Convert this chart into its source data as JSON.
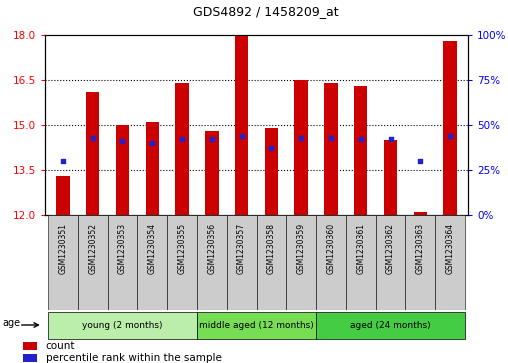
{
  "title": "GDS4892 / 1458209_at",
  "samples": [
    "GSM1230351",
    "GSM1230352",
    "GSM1230353",
    "GSM1230354",
    "GSM1230355",
    "GSM1230356",
    "GSM1230357",
    "GSM1230358",
    "GSM1230359",
    "GSM1230360",
    "GSM1230361",
    "GSM1230362",
    "GSM1230363",
    "GSM1230364"
  ],
  "bar_tops": [
    13.3,
    16.1,
    15.0,
    15.1,
    16.4,
    14.8,
    18.0,
    14.9,
    16.5,
    16.4,
    16.3,
    14.5,
    12.1,
    17.8
  ],
  "bar_bottom": 12.0,
  "percentile_values": [
    30,
    43,
    41,
    40,
    42,
    42,
    44,
    37,
    43,
    43,
    42,
    42,
    30,
    44
  ],
  "left_ylim": [
    12,
    18
  ],
  "right_ylim": [
    0,
    100
  ],
  "left_yticks": [
    12,
    13.5,
    15,
    16.5,
    18
  ],
  "right_yticks": [
    0,
    25,
    50,
    75,
    100
  ],
  "right_yticklabels": [
    "0%",
    "25%",
    "50%",
    "75%",
    "100%"
  ],
  "dotted_lines": [
    13.5,
    15.0,
    16.5
  ],
  "bar_color": "#cc0000",
  "blue_color": "#2222cc",
  "groups": [
    {
      "label": "young (2 months)",
      "start": 0,
      "end": 5,
      "color": "#bbeeaa"
    },
    {
      "label": "middle aged (12 months)",
      "start": 5,
      "end": 9,
      "color": "#77dd55"
    },
    {
      "label": "aged (24 months)",
      "start": 9,
      "end": 14,
      "color": "#44cc44"
    }
  ],
  "age_label": "age",
  "bar_width": 0.45,
  "tick_label_color": "#cccccc",
  "group_border_color": "#000000"
}
